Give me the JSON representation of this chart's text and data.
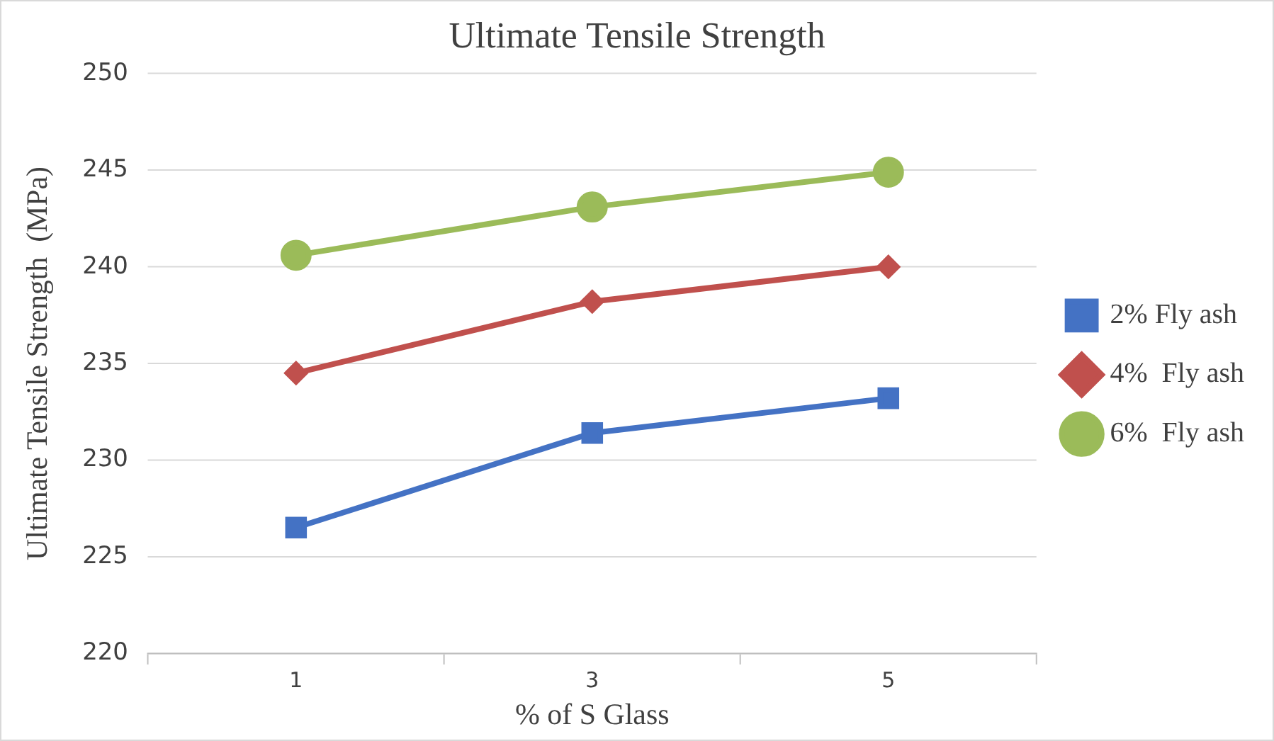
{
  "chart_data": {
    "type": "line",
    "title": "Ultimate Tensile Strength",
    "xlabel": "% of S Glass",
    "ylabel": "Ultimate Tensile Strength  (MPa)",
    "categories": [
      "1",
      "3",
      "5"
    ],
    "series": [
      {
        "name": "2% Fly ash",
        "color": "#4472c4",
        "marker": "square",
        "values": [
          226.5,
          231.4,
          233.2
        ]
      },
      {
        "name": "4%  Fly ash",
        "color": "#c0504d",
        "marker": "diamond",
        "values": [
          234.5,
          238.2,
          240.0
        ]
      },
      {
        "name": "6%  Fly ash",
        "color": "#9bbb59",
        "marker": "circle",
        "values": [
          240.6,
          243.1,
          244.9
        ]
      }
    ],
    "ylim": [
      220,
      250
    ],
    "yticks": [
      220,
      225,
      230,
      235,
      240,
      245,
      250
    ],
    "grid": "y",
    "legend": "right",
    "line_style": "solid"
  }
}
